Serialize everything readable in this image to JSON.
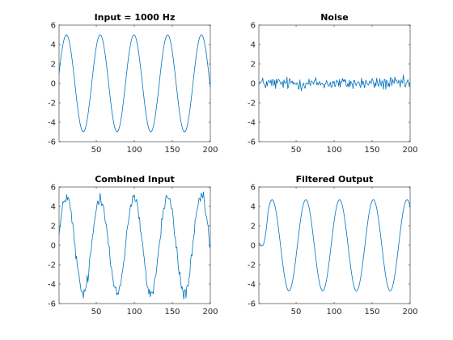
{
  "figure": {
    "background": "#ffffff",
    "line_color": "#0072BD"
  },
  "chart_data": [
    {
      "type": "line",
      "title": "Input = 1000 Hz",
      "xlim": [
        1,
        200
      ],
      "ylim": [
        -6,
        6
      ],
      "xticks": [
        50,
        100,
        150,
        200
      ],
      "yticks": [
        -6,
        -4,
        -2,
        0,
        2,
        4,
        6
      ],
      "grid": false,
      "series": [
        {
          "signal": "sine",
          "amplitude": 5,
          "period_samples": 44.4,
          "noise_amplitude": 0,
          "x_start": 1,
          "x_end": 200
        }
      ]
    },
    {
      "type": "line",
      "title": "Noise",
      "xlim": [
        1,
        200
      ],
      "ylim": [
        -6,
        6
      ],
      "xticks": [
        50,
        100,
        150,
        200
      ],
      "yticks": [
        -6,
        -4,
        -2,
        0,
        2,
        4,
        6
      ],
      "grid": false,
      "series": [
        {
          "signal": "noise",
          "amplitude": 0,
          "period_samples": 0,
          "noise_amplitude": 1.0,
          "x_start": 1,
          "x_end": 200
        }
      ]
    },
    {
      "type": "line",
      "title": "Combined Input",
      "xlim": [
        1,
        200
      ],
      "ylim": [
        -6,
        6
      ],
      "xticks": [
        50,
        100,
        150,
        200
      ],
      "yticks": [
        -6,
        -4,
        -2,
        0,
        2,
        4,
        6
      ],
      "grid": false,
      "series": [
        {
          "signal": "sine+noise",
          "amplitude": 5,
          "period_samples": 44.4,
          "noise_amplitude": 1.0,
          "x_start": 1,
          "x_end": 200
        }
      ]
    },
    {
      "type": "line",
      "title": "Filtered Output",
      "xlim": [
        1,
        200
      ],
      "ylim": [
        -6,
        6
      ],
      "xticks": [
        50,
        100,
        150,
        200
      ],
      "yticks": [
        -6,
        -4,
        -2,
        0,
        2,
        4,
        6
      ],
      "grid": false,
      "series": [
        {
          "signal": "filtered-sine",
          "amplitude": 4.7,
          "period_samples": 44.4,
          "noise_amplitude": 0,
          "startup_samples": 12,
          "x_start": 1,
          "x_end": 200
        }
      ]
    }
  ]
}
